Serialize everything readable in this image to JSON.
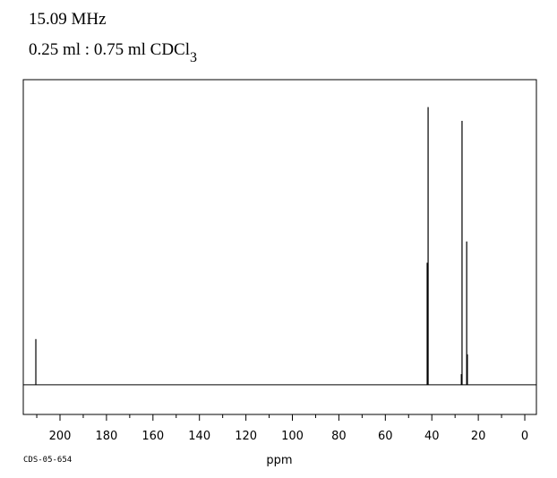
{
  "chart_data": {
    "type": "stick",
    "title": "15.09 MHz",
    "subtitle": "0.25 ml : 0.75 ml CDCl",
    "subtitle_subscript": "3",
    "code": "CDS-05-654",
    "xlabel": "ppm",
    "x": [
      210.4,
      42.0,
      41.6,
      27.3,
      27.0,
      25.0,
      24.7
    ],
    "values": [
      15,
      40,
      91,
      3.5,
      86.5,
      47,
      10
    ],
    "color": "#000000",
    "xlim": [
      215.8,
      -5
    ],
    "ylim": [
      -9.7,
      100
    ],
    "xticks": [
      200,
      180,
      160,
      140,
      120,
      100,
      80,
      60,
      40,
      20,
      0
    ],
    "xminorticks": [
      210,
      190,
      170,
      150,
      130,
      110,
      90,
      70,
      50,
      30,
      10
    ]
  }
}
